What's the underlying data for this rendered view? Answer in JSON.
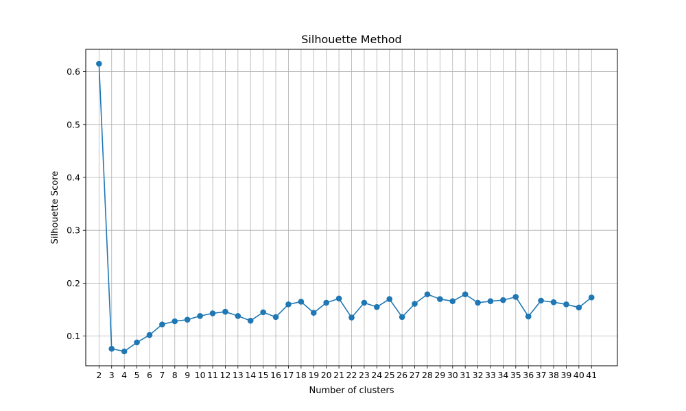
{
  "chart_data": {
    "type": "line",
    "title": "Silhouette Method",
    "xlabel": "Number of clusters",
    "ylabel": "Silhouette Score",
    "x": [
      2,
      3,
      4,
      5,
      6,
      7,
      8,
      9,
      10,
      11,
      12,
      13,
      14,
      15,
      16,
      17,
      18,
      19,
      20,
      21,
      22,
      23,
      24,
      25,
      26,
      27,
      28,
      29,
      30,
      31,
      32,
      33,
      34,
      35,
      36,
      37,
      38,
      39,
      40,
      41
    ],
    "series": [
      {
        "values": [
          0.615,
          0.076,
          0.071,
          0.088,
          0.102,
          0.122,
          0.128,
          0.131,
          0.138,
          0.143,
          0.146,
          0.138,
          0.129,
          0.145,
          0.136,
          0.16,
          0.165,
          0.144,
          0.163,
          0.171,
          0.135,
          0.163,
          0.155,
          0.17,
          0.136,
          0.161,
          0.179,
          0.17,
          0.166,
          0.179,
          0.163,
          0.166,
          0.168,
          0.174,
          0.137,
          0.167,
          0.164,
          0.16,
          0.154,
          0.173
        ],
        "color": "#1f77b4",
        "marker": "circle"
      }
    ],
    "xticks": [
      2,
      3,
      4,
      5,
      6,
      7,
      8,
      9,
      10,
      11,
      12,
      13,
      14,
      15,
      16,
      17,
      18,
      19,
      20,
      21,
      22,
      23,
      24,
      25,
      26,
      27,
      28,
      29,
      30,
      31,
      32,
      33,
      34,
      35,
      36,
      37,
      38,
      39,
      40,
      41
    ],
    "yticks": [
      0.1,
      0.2,
      0.3,
      0.4,
      0.5,
      0.6
    ],
    "xlim": [
      0.95,
      43.05
    ],
    "ylim": [
      0.0438,
      0.6422
    ],
    "grid": true,
    "legend": false
  }
}
